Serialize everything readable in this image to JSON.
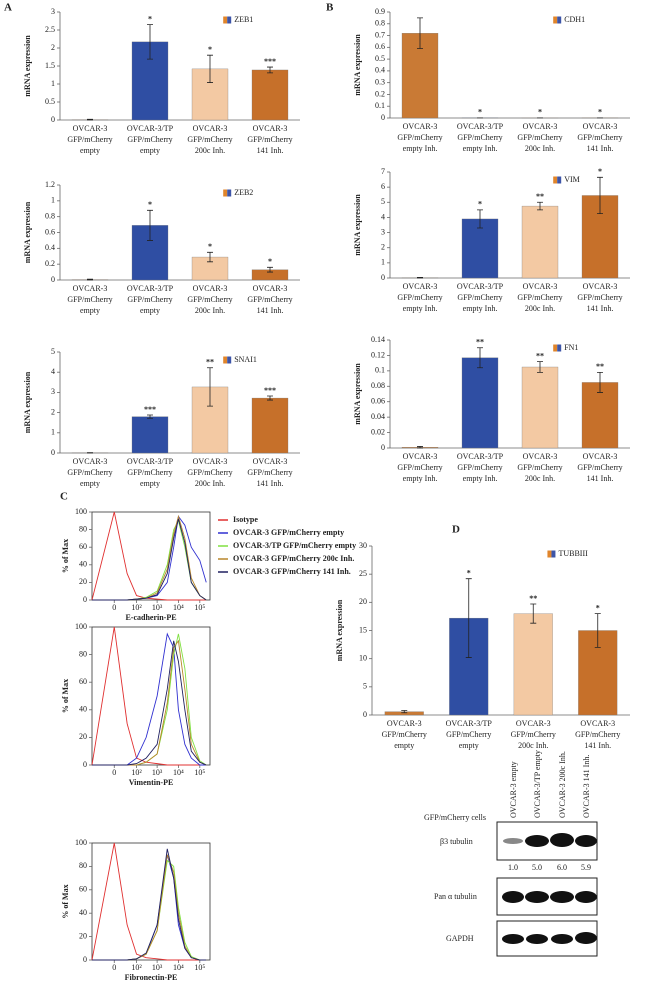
{
  "panel_labels": [
    "A",
    "B",
    "C",
    "D"
  ],
  "chart_data": [
    {
      "type": "bar",
      "ylabel": "mRNA expression",
      "ylim": [
        0,
        3
      ],
      "yticks": [
        0,
        0.5,
        1,
        1.5,
        2,
        2.5,
        3
      ],
      "categories": [
        [
          "OVCAR-3",
          "GFP/mCherry",
          "empty"
        ],
        [
          "OVCAR-3/TP",
          "GFP/mCherry",
          "empty"
        ],
        [
          "OVCAR-3",
          "GFP/mCherry",
          "200c Inh."
        ],
        [
          "OVCAR-3",
          "GFP/mCherry",
          "141 Inh."
        ]
      ],
      "legend_colors": [
        "#e0852b",
        "#3d55a8"
      ],
      "series": [
        {
          "name": "ZEB1",
          "colors": [
            "#c97a35",
            "#2f4ea3",
            "#f3c9a3",
            "#c6702a"
          ],
          "values": [
            0.01,
            2.17,
            1.42,
            1.39
          ],
          "errors": [
            0.01,
            0.48,
            0.38,
            0.08
          ],
          "significance": [
            null,
            "*",
            "*",
            "***"
          ]
        }
      ]
    },
    {
      "type": "bar",
      "ylabel": "mRNA expression",
      "ylim": [
        0,
        1.2
      ],
      "yticks": [
        0,
        0.2,
        0.4,
        0.6,
        0.8,
        1,
        1.2
      ],
      "categories": [
        [
          "OVCAR-3",
          "GFP/mCherry",
          "empty"
        ],
        [
          "OVCAR-3/TP",
          "GFP/mCherry",
          "empty"
        ],
        [
          "OVCAR-3",
          "GFP/mCherry",
          "200c Inh."
        ],
        [
          "OVCAR-3",
          "GFP/mCherry",
          "141 Inh."
        ]
      ],
      "legend_colors": [
        "#e0852b",
        "#3d55a8"
      ],
      "series": [
        {
          "name": "ZEB2",
          "colors": [
            "#c97a35",
            "#2f4ea3",
            "#f3c9a3",
            "#c6702a"
          ],
          "values": [
            0.005,
            0.69,
            0.29,
            0.13
          ],
          "errors": [
            0.005,
            0.19,
            0.06,
            0.03
          ],
          "significance": [
            null,
            "*",
            "*",
            "*"
          ]
        }
      ]
    },
    {
      "type": "bar",
      "ylabel": "mRNA expression",
      "ylim": [
        0,
        5
      ],
      "yticks": [
        0,
        1,
        2,
        3,
        4,
        5
      ],
      "categories": [
        [
          "OVCAR-3",
          "GFP/mCherry",
          "empty"
        ],
        [
          "OVCAR-3/TP",
          "GFP/mCherry",
          "empty"
        ],
        [
          "OVCAR-3",
          "GFP/mCherry",
          "200c Inh."
        ],
        [
          "OVCAR-3",
          "GFP/mCherry",
          "141 Inh."
        ]
      ],
      "legend_colors": [
        "#e0852b",
        "#3d55a8"
      ],
      "series": [
        {
          "name": "SNAI1",
          "colors": [
            "#c97a35",
            "#2f4ea3",
            "#f3c9a3",
            "#c6702a"
          ],
          "values": [
            0.01,
            1.8,
            3.27,
            2.72
          ],
          "errors": [
            0.01,
            0.08,
            0.95,
            0.1
          ],
          "significance": [
            null,
            "***",
            "**",
            "***"
          ]
        }
      ]
    },
    {
      "type": "bar",
      "ylabel": "mRNA expression",
      "ylim": [
        0,
        0.9
      ],
      "yticks": [
        0,
        0.1,
        0.2,
        0.3,
        0.4,
        0.5,
        0.6,
        0.7,
        0.8,
        0.9
      ],
      "categories": [
        [
          "OVCAR-3",
          "GFP/mCherry",
          "empty Inh."
        ],
        [
          "OVCAR-3/TP",
          "GFP/mCherry",
          "empty Inh."
        ],
        [
          "OVCAR-3",
          "GFP/mCherry",
          "200c Inh."
        ],
        [
          "OVCAR-3",
          "GFP/mCherry",
          "141 Inh."
        ]
      ],
      "legend_colors": [
        "#e0852b",
        "#3d55a8"
      ],
      "series": [
        {
          "name": "CDH1",
          "colors": [
            "#c97a35",
            "#2f4ea3",
            "#f3c9a3",
            "#c6702a"
          ],
          "values": [
            0.72,
            0.001,
            0.001,
            0.001
          ],
          "errors": [
            0.13,
            0,
            0,
            0
          ],
          "significance": [
            null,
            "*",
            "*",
            "*"
          ]
        }
      ]
    },
    {
      "type": "bar",
      "ylabel": "mRNA expression",
      "ylim": [
        0,
        7
      ],
      "yticks": [
        0,
        1,
        2,
        3,
        4,
        5,
        6,
        7
      ],
      "categories": [
        [
          "OVCAR-3",
          "GFP/mCherry",
          "empty Inh."
        ],
        [
          "OVCAR-3/TP",
          "GFP/mCherry",
          "empty Inh."
        ],
        [
          "OVCAR-3",
          "GFP/mCherry",
          "200c Inh."
        ],
        [
          "OVCAR-3",
          "GFP/mCherry",
          "141 Inh."
        ]
      ],
      "legend_colors": [
        "#e0852b",
        "#3d55a8"
      ],
      "series": [
        {
          "name": "VIM",
          "colors": [
            "#c97a35",
            "#2f4ea3",
            "#f3c9a3",
            "#c6702a"
          ],
          "values": [
            0.02,
            3.9,
            4.75,
            5.45
          ],
          "errors": [
            0.02,
            0.6,
            0.25,
            1.2
          ],
          "significance": [
            null,
            "*",
            "**",
            "*"
          ]
        }
      ]
    },
    {
      "type": "bar",
      "ylabel": "mRNA expression",
      "ylim": [
        0,
        0.14
      ],
      "yticks": [
        0,
        0.02,
        0.04,
        0.06,
        0.08,
        0.1,
        0.12,
        0.14
      ],
      "categories": [
        [
          "OVCAR-3",
          "GFP/mCherry",
          "empty Inh."
        ],
        [
          "OVCAR-3/TP",
          "GFP/mCherry",
          "empty Inh."
        ],
        [
          "OVCAR-3",
          "GFP/mCherry",
          "200c Inh."
        ],
        [
          "OVCAR-3",
          "GFP/mCherry",
          "141 Inh."
        ]
      ],
      "legend_colors": [
        "#e0852b",
        "#3d55a8"
      ],
      "series": [
        {
          "name": "FN1",
          "colors": [
            "#c97a35",
            "#2f4ea3",
            "#f3c9a3",
            "#c6702a"
          ],
          "values": [
            0.001,
            0.117,
            0.105,
            0.085
          ],
          "errors": [
            0.001,
            0.013,
            0.007,
            0.013
          ],
          "significance": [
            null,
            "**",
            "**",
            "**"
          ]
        }
      ]
    },
    {
      "type": "flow",
      "ylabel": "% of Max",
      "xlabel": "E-cadherin-PE",
      "xscale": "symlog",
      "xlim": [
        -100,
        300000
      ],
      "ylim": [
        0,
        100
      ],
      "yticks": [
        0,
        20,
        40,
        60,
        80,
        100
      ],
      "xticks": [
        0,
        {
          "value": 100,
          "label": "10²"
        },
        {
          "value": 1000,
          "label": "10³"
        },
        {
          "value": 10000,
          "label": "10⁴"
        },
        {
          "value": 100000,
          "label": "10⁵"
        }
      ],
      "x": [
        -100,
        0,
        30,
        100,
        300,
        1000,
        3000,
        6000,
        10000,
        20000,
        40000,
        100000,
        200000
      ],
      "series": [
        {
          "name": "Isotype",
          "color": "#e03030",
          "values": [
            0,
            100,
            30,
            5,
            2,
            1,
            0,
            0,
            0,
            0,
            0,
            0,
            0
          ]
        },
        {
          "name": "OVCAR-3 GFP/mCherry  empty",
          "color": "#3030d0",
          "values": [
            0,
            0,
            0,
            1,
            2,
            5,
            20,
            60,
            95,
            85,
            60,
            45,
            20
          ]
        },
        {
          "name": "OVCAR-3/TP GFP/mCherry  empty",
          "color": "#80e040",
          "values": [
            0,
            0,
            0,
            1,
            3,
            10,
            40,
            80,
            90,
            60,
            20,
            5,
            0
          ]
        },
        {
          "name": "OVCAR-3 GFP/mCherry  200c Inh.",
          "color": "#b8862a",
          "values": [
            0,
            0,
            0,
            1,
            2,
            8,
            35,
            75,
            95,
            70,
            25,
            5,
            0
          ]
        },
        {
          "name": "OVCAR-3 GFP/mCherry  141 Inh.",
          "color": "#202060",
          "values": [
            0,
            0,
            0,
            1,
            2,
            6,
            30,
            70,
            92,
            65,
            20,
            5,
            0
          ]
        }
      ]
    },
    {
      "type": "flow",
      "ylabel": "% of Max",
      "xlabel": "Vimentin-PE",
      "xscale": "symlog",
      "xlim": [
        -100,
        300000
      ],
      "ylim": [
        0,
        100
      ],
      "yticks": [
        0,
        20,
        40,
        60,
        80,
        100
      ],
      "xticks": [
        0,
        {
          "value": 100,
          "label": "10²"
        },
        {
          "value": 1000,
          "label": "10³"
        },
        {
          "value": 10000,
          "label": "10⁴"
        },
        {
          "value": 100000,
          "label": "10⁵"
        }
      ],
      "x": [
        -100,
        0,
        30,
        100,
        300,
        1000,
        3000,
        6000,
        10000,
        20000,
        40000,
        100000,
        200000
      ],
      "series": [
        {
          "color": "#e03030",
          "values": [
            0,
            100,
            30,
            5,
            2,
            1,
            0,
            0,
            0,
            0,
            0,
            0,
            0
          ]
        },
        {
          "color": "#3030d0",
          "values": [
            0,
            0,
            0,
            5,
            20,
            50,
            95,
            85,
            40,
            15,
            5,
            0,
            0
          ]
        },
        {
          "color": "#80e040",
          "values": [
            0,
            0,
            0,
            0,
            2,
            8,
            40,
            80,
            95,
            70,
            20,
            3,
            0
          ]
        },
        {
          "color": "#b8862a",
          "values": [
            0,
            0,
            0,
            0,
            2,
            8,
            45,
            85,
            90,
            55,
            15,
            2,
            0
          ]
        },
        {
          "color": "#202060",
          "values": [
            0,
            0,
            0,
            1,
            5,
            15,
            55,
            90,
            75,
            40,
            10,
            2,
            0
          ]
        }
      ]
    },
    {
      "type": "flow",
      "ylabel": "% of Max",
      "xlabel": "Fibronectin-PE",
      "xscale": "symlog",
      "xlim": [
        -100,
        300000
      ],
      "ylim": [
        0,
        100
      ],
      "yticks": [
        0,
        20,
        40,
        60,
        80,
        100
      ],
      "xticks": [
        0,
        {
          "value": 100,
          "label": "10²"
        },
        {
          "value": 1000,
          "label": "10³"
        },
        {
          "value": 10000,
          "label": "10⁴"
        },
        {
          "value": 100000,
          "label": "10⁵"
        }
      ],
      "x": [
        -100,
        0,
        30,
        100,
        300,
        1000,
        3000,
        6000,
        10000,
        20000,
        40000,
        100000,
        200000
      ],
      "series": [
        {
          "color": "#e03030",
          "values": [
            0,
            100,
            30,
            5,
            2,
            1,
            0,
            0,
            0,
            0,
            0,
            0,
            0
          ]
        },
        {
          "color": "#3030d0",
          "values": [
            0,
            0,
            0,
            1,
            5,
            30,
            90,
            70,
            30,
            10,
            2,
            0,
            0
          ]
        },
        {
          "color": "#80e040",
          "values": [
            0,
            0,
            0,
            1,
            5,
            25,
            85,
            80,
            45,
            15,
            3,
            0,
            0
          ]
        },
        {
          "color": "#b8862a",
          "values": [
            0,
            0,
            0,
            1,
            5,
            25,
            90,
            75,
            40,
            12,
            2,
            0,
            0
          ]
        },
        {
          "color": "#202060",
          "values": [
            0,
            0,
            0,
            1,
            6,
            30,
            95,
            70,
            35,
            10,
            2,
            0,
            0
          ]
        }
      ]
    },
    {
      "type": "bar",
      "ylabel": "mRNA expression",
      "ylim": [
        0,
        30
      ],
      "yticks": [
        0,
        5,
        10,
        15,
        20,
        25,
        30
      ],
      "categories": [
        [
          "OVCAR-3",
          "GFP/mCherry",
          "empty"
        ],
        [
          "OVCAR-3/TP",
          "GFP/mCherry",
          "empty"
        ],
        [
          "OVCAR-3",
          "GFP/mCherry",
          "200c Inh."
        ],
        [
          "OVCAR-3",
          "GFP/mCherry",
          "141 Inh."
        ]
      ],
      "legend_colors": [
        "#e0852b",
        "#3d55a8"
      ],
      "series": [
        {
          "name": "TUBBIII",
          "colors": [
            "#c97a35",
            "#2f4ea3",
            "#f3c9a3",
            "#c6702a"
          ],
          "values": [
            0.6,
            17.2,
            18,
            15
          ],
          "errors": [
            0.2,
            7,
            1.7,
            3
          ],
          "significance": [
            null,
            "*",
            "**",
            "*"
          ]
        }
      ]
    }
  ],
  "blot": {
    "row_label": "GFP/mCherry  cells",
    "lanes": [
      "OVCAR-3 empty",
      "OVCAR-3/TP  empty",
      "OVCAR-3 200c Inh.",
      "OVCAR-3 141 Inh."
    ],
    "bands": [
      "β3 tubulin",
      "Pan α tubulin",
      "GAPDH"
    ],
    "quantification": [
      "1.0",
      "5.0",
      "6.0",
      "5.9"
    ]
  }
}
